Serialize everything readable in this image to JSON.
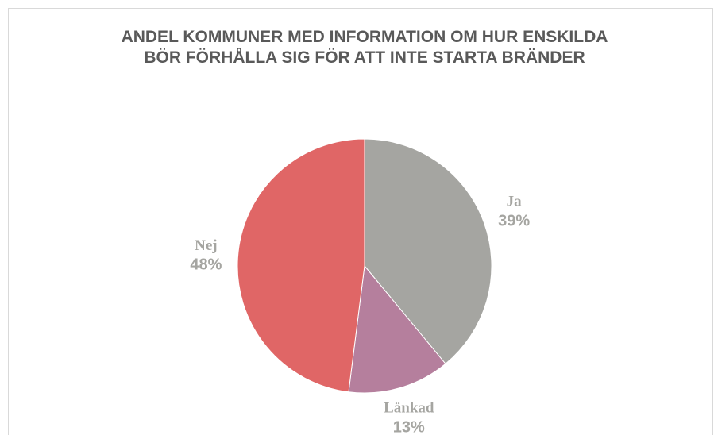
{
  "chart_data": {
    "type": "pie",
    "title": "ANDEL KOMMUNER MED INFORMATION OM HUR ENSKILDA BÖR FÖRHÅLLA SIG FÖR ATT INTE STARTA BRÄNDER",
    "categories": [
      "Ja",
      "Länkad",
      "Nej"
    ],
    "values": [
      39,
      13,
      48
    ],
    "value_labels": [
      "39%",
      "13%",
      "48%"
    ],
    "colors": [
      "#a5a5a1",
      "#b57f9d",
      "#e06666"
    ]
  }
}
